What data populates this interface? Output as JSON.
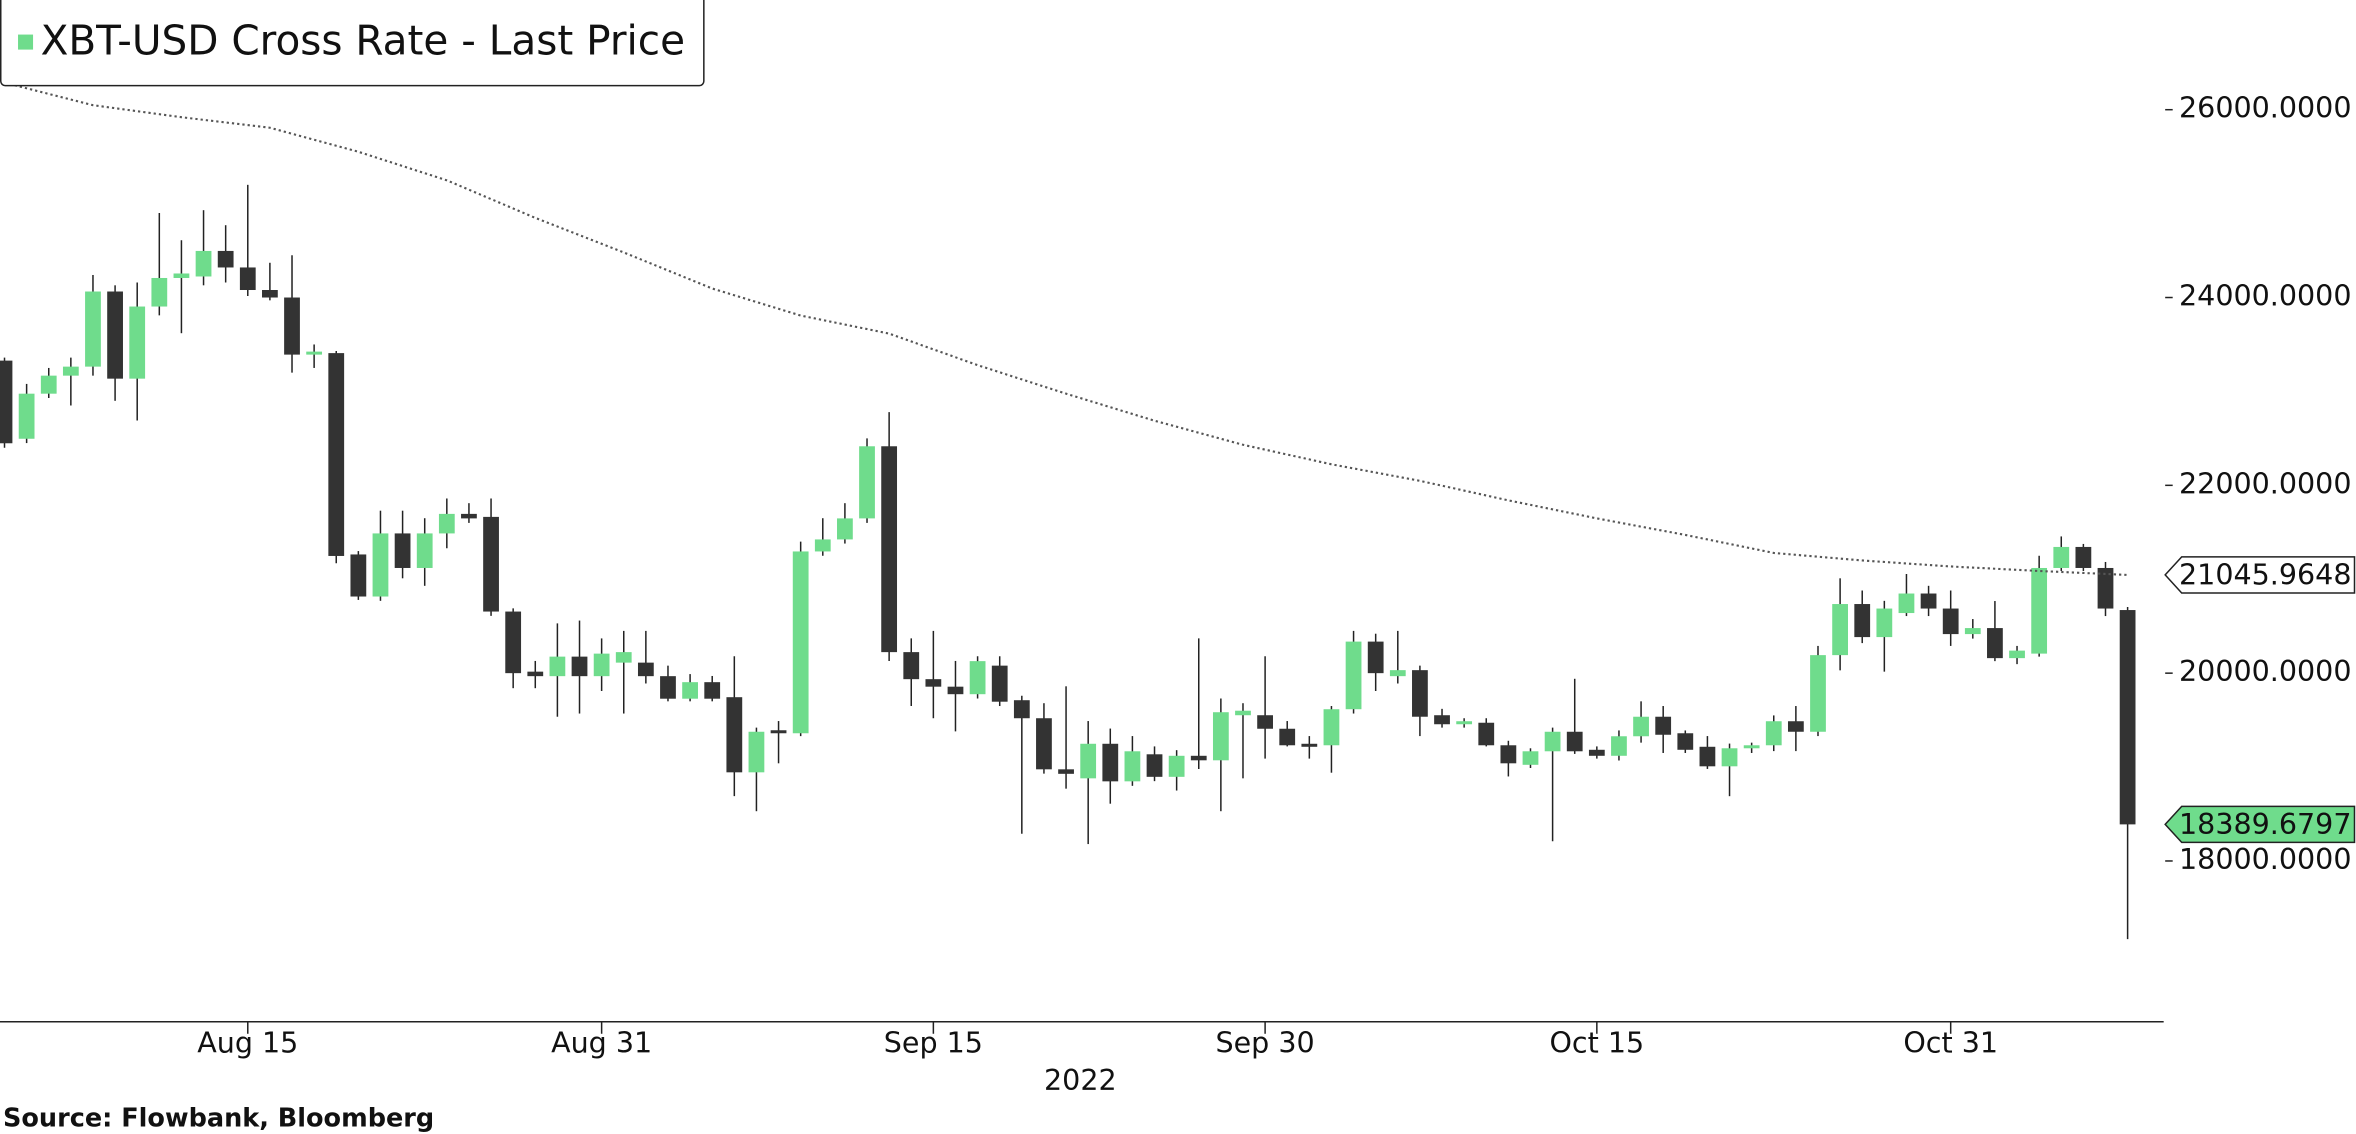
{
  "chart_data": {
    "type": "candlestick",
    "title": "XBT-USD Cross Rate - Last Price",
    "source": "Source: Flowbank, Bloomberg",
    "x_axis_label": "2022",
    "x": [
      "2022-08-04",
      "2022-08-05",
      "2022-08-06",
      "2022-08-07",
      "2022-08-08",
      "2022-08-09",
      "2022-08-10",
      "2022-08-11",
      "2022-08-12",
      "2022-08-13",
      "2022-08-14",
      "2022-08-15",
      "2022-08-16",
      "2022-08-17",
      "2022-08-18",
      "2022-08-19",
      "2022-08-20",
      "2022-08-21",
      "2022-08-22",
      "2022-08-23",
      "2022-08-24",
      "2022-08-25",
      "2022-08-26",
      "2022-08-27",
      "2022-08-28",
      "2022-08-29",
      "2022-08-30",
      "2022-08-31",
      "2022-09-01",
      "2022-09-02",
      "2022-09-03",
      "2022-09-04",
      "2022-09-05",
      "2022-09-06",
      "2022-09-07",
      "2022-09-08",
      "2022-09-09",
      "2022-09-10",
      "2022-09-11",
      "2022-09-12",
      "2022-09-13",
      "2022-09-14",
      "2022-09-15",
      "2022-09-16",
      "2022-09-17",
      "2022-09-18",
      "2022-09-19",
      "2022-09-20",
      "2022-09-21",
      "2022-09-22",
      "2022-09-23",
      "2022-09-24",
      "2022-09-25",
      "2022-09-26",
      "2022-09-27",
      "2022-09-28",
      "2022-09-29",
      "2022-09-30",
      "2022-10-01",
      "2022-10-02",
      "2022-10-03",
      "2022-10-04",
      "2022-10-05",
      "2022-10-06",
      "2022-10-07",
      "2022-10-08",
      "2022-10-09",
      "2022-10-10",
      "2022-10-11",
      "2022-10-12",
      "2022-10-13",
      "2022-10-14",
      "2022-10-15",
      "2022-10-16",
      "2022-10-17",
      "2022-10-18",
      "2022-10-19",
      "2022-10-20",
      "2022-10-21",
      "2022-10-22",
      "2022-10-23",
      "2022-10-24",
      "2022-10-25",
      "2022-10-26",
      "2022-10-27",
      "2022-10-28",
      "2022-10-29",
      "2022-10-30",
      "2022-10-31",
      "2022-11-01",
      "2022-11-02",
      "2022-11-03",
      "2022-11-04",
      "2022-11-05",
      "2022-11-06",
      "2022-11-07",
      "2022-11-08"
    ],
    "series": [
      {
        "type": "candlestick",
        "name": "XBT-USD Cross Rate - Last Price",
        "color": "#6fdc8c",
        "down_color": "#333333",
        "open": [
          23328,
          22496,
          22976,
          23168,
          23264,
          24064,
          23136,
          23904,
          24208,
          24224,
          24496,
          24320,
          24080,
          24000,
          23392,
          23408,
          21264,
          20816,
          21488,
          21120,
          21488,
          21696,
          21664,
          20656,
          20016,
          19968,
          20176,
          19968,
          20112,
          20112,
          19968,
          19728,
          19904,
          19744,
          18944,
          19392,
          19360,
          21296,
          21424,
          21648,
          22416,
          20224,
          19936,
          19856,
          19776,
          20080,
          19712,
          19520,
          18976,
          18880,
          19248,
          18848,
          19136,
          18896,
          19120,
          19072,
          19552,
          19552,
          19408,
          19248,
          19232,
          19616,
          20336,
          19968,
          20032,
          19552,
          19456,
          19472,
          19232,
          19024,
          19168,
          19376,
          19184,
          19120,
          19328,
          19536,
          19360,
          19216,
          19008,
          19200,
          19232,
          19488,
          19376,
          20192,
          20736,
          20384,
          20640,
          20848,
          20688,
          20416,
          20480,
          20160,
          20208,
          21120,
          21344,
          21120,
          20672
        ],
        "high": [
          23360,
          23080,
          23250,
          23360,
          24240,
          24130,
          24160,
          24900,
          24610,
          24930,
          24770,
          25200,
          24370,
          24450,
          23500,
          23430,
          21300,
          21730,
          21730,
          21650,
          21860,
          21810,
          21860,
          20690,
          20130,
          20530,
          20560,
          20370,
          20450,
          20450,
          20080,
          19990,
          19970,
          20180,
          19420,
          19490,
          21400,
          21650,
          21810,
          22500,
          22780,
          20370,
          20450,
          20130,
          20180,
          20180,
          19760,
          19680,
          19860,
          19490,
          19410,
          19330,
          19220,
          19180,
          20370,
          19730,
          19680,
          20180,
          19490,
          19330,
          19650,
          20450,
          20420,
          20450,
          20080,
          19620,
          19520,
          19520,
          19280,
          19200,
          19420,
          19940,
          19220,
          19390,
          19700,
          19650,
          19390,
          19330,
          19250,
          19260,
          19550,
          19650,
          20290,
          21010,
          20880,
          20770,
          21056,
          20930,
          20880,
          20576,
          20768,
          20290,
          21250,
          21456,
          21376,
          21184,
          20704
        ],
        "low": [
          22400,
          22450,
          22930,
          22850,
          23168,
          22900,
          22690,
          23810,
          23620,
          24130,
          24160,
          24016,
          23970,
          23200,
          23250,
          21170,
          20780,
          20770,
          21010,
          20930,
          21330,
          21600,
          20610,
          19840,
          19840,
          19536,
          19570,
          19810,
          19570,
          19890,
          19700,
          19700,
          19700,
          18690,
          18530,
          19040,
          19330,
          21250,
          21380,
          21600,
          20130,
          19650,
          19520,
          19380,
          19730,
          19650,
          18290,
          18930,
          18770,
          18180,
          18610,
          18800,
          18850,
          18750,
          18980,
          18530,
          18880,
          19090,
          19220,
          19090,
          18940,
          19570,
          19810,
          19890,
          19330,
          19420,
          19420,
          19220,
          18900,
          18990,
          18210,
          19140,
          19090,
          19070,
          19260,
          19150,
          19150,
          18980,
          18690,
          19150,
          19170,
          19170,
          19330,
          20030,
          20320,
          20016,
          20608,
          20608,
          20290,
          20368,
          20128,
          20096,
          20176,
          21088,
          21088,
          20608,
          17168
        ],
        "close": [
          22448,
          22976,
          23168,
          23264,
          24064,
          23136,
          23904,
          24208,
          24256,
          24496,
          24320,
          24080,
          24000,
          23392,
          23424,
          21248,
          20816,
          21488,
          21120,
          21488,
          21696,
          21648,
          20656,
          20000,
          19968,
          20176,
          19968,
          20208,
          20224,
          19968,
          19728,
          19904,
          19728,
          18944,
          19376,
          19360,
          21296,
          21424,
          21648,
          22416,
          20224,
          19936,
          19856,
          19776,
          20128,
          19696,
          19520,
          18976,
          18928,
          19248,
          18848,
          19168,
          18896,
          19120,
          19072,
          19584,
          19600,
          19408,
          19232,
          19216,
          19616,
          20336,
          20000,
          20032,
          19536,
          19456,
          19488,
          19232,
          19040,
          19168,
          19376,
          19168,
          19120,
          19328,
          19536,
          19344,
          19184,
          19008,
          19200,
          19232,
          19488,
          19376,
          20192,
          20736,
          20384,
          20688,
          20848,
          20688,
          20416,
          20480,
          20160,
          20240,
          21120,
          21344,
          21120,
          20688,
          18389.6797
        ]
      },
      {
        "type": "line",
        "color": "#555555",
        "dotted": true,
        "x": [
          "2022-08-04",
          "2022-08-08",
          "2022-08-12",
          "2022-08-16",
          "2022-08-20",
          "2022-08-24",
          "2022-08-28",
          "2022-09-01",
          "2022-09-05",
          "2022-09-09",
          "2022-09-13",
          "2022-09-17",
          "2022-09-21",
          "2022-09-25",
          "2022-09-29",
          "2022-10-03",
          "2022-10-07",
          "2022-10-11",
          "2022-10-15",
          "2022-10-19",
          "2022-10-23",
          "2022-10-27",
          "2022-10-31",
          "2022-11-04",
          "2022-11-08"
        ],
        "values": [
          26288,
          26048,
          25920,
          25808,
          25552,
          25248,
          24848,
          24480,
          24096,
          23808,
          23616,
          23280,
          22976,
          22688,
          22432,
          22224,
          22048,
          21840,
          21648,
          21472,
          21280,
          21200,
          21136,
          21088,
          21045.9648
        ]
      }
    ],
    "ylim": [
      16288,
      27168
    ],
    "yticks": [
      {
        "value": 18000,
        "label": "18000.0000"
      },
      {
        "value": 20000,
        "label": "20000.0000"
      },
      {
        "value": 22000,
        "label": "22000.0000"
      },
      {
        "value": 24000,
        "label": "24000.0000"
      },
      {
        "value": 26000,
        "label": "26000.0000"
      }
    ],
    "xticks": [
      {
        "value": "2022-08-15",
        "label": "Aug 15"
      },
      {
        "value": "2022-08-31",
        "label": "Aug 31"
      },
      {
        "value": "2022-09-15",
        "label": "Sep 15"
      },
      {
        "value": "2022-09-30",
        "label": "Sep 30"
      },
      {
        "value": "2022-10-15",
        "label": "Oct 15"
      },
      {
        "value": "2022-10-31",
        "label": "Oct 31"
      }
    ],
    "grid": false,
    "legend": "top-left"
  }
}
